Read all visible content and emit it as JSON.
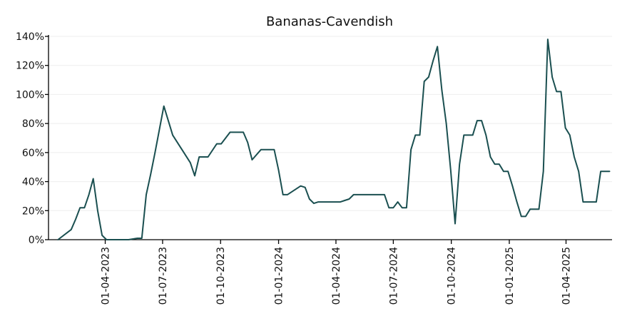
{
  "chart_data": {
    "type": "line",
    "title": "Bananas-Cavendish",
    "xlabel": "",
    "ylabel": "",
    "ylim": [
      0,
      140
    ],
    "yticks": [
      0,
      20,
      40,
      60,
      80,
      100,
      120,
      140
    ],
    "ytick_labels": [
      "0%",
      "20%",
      "40%",
      "60%",
      "80%",
      "100%",
      "120%",
      "140%"
    ],
    "xlim": [
      "2023-01-01",
      "2025-06-13"
    ],
    "xticks": [
      "2023-04-01",
      "2023-07-01",
      "2023-10-01",
      "2024-01-01",
      "2024-04-01",
      "2024-07-01",
      "2024-10-01",
      "2025-01-01",
      "2025-04-01"
    ],
    "xtick_labels": [
      "01-04-2023",
      "01-07-2023",
      "01-10-2023",
      "01-01-2024",
      "01-04-2024",
      "01-07-2024",
      "01-10-2024",
      "01-01-2025",
      "01-04-2025"
    ],
    "grid": true,
    "line_color": "#1a4f50",
    "series": [
      {
        "points": [
          [
            "2023-01-16",
            0
          ],
          [
            "2023-02-06",
            7
          ],
          [
            "2023-02-13",
            14
          ],
          [
            "2023-02-20",
            22
          ],
          [
            "2023-02-27",
            22
          ],
          [
            "2023-03-06",
            31
          ],
          [
            "2023-03-13",
            42
          ],
          [
            "2023-03-20",
            20
          ],
          [
            "2023-03-27",
            3
          ],
          [
            "2023-04-03",
            0
          ],
          [
            "2023-04-10",
            0
          ],
          [
            "2023-05-08",
            0
          ],
          [
            "2023-05-22",
            1
          ],
          [
            "2023-05-29",
            1
          ],
          [
            "2023-06-05",
            31
          ],
          [
            "2023-06-12",
            45
          ],
          [
            "2023-06-19",
            60
          ],
          [
            "2023-06-26",
            76
          ],
          [
            "2023-07-03",
            92
          ],
          [
            "2023-07-10",
            82
          ],
          [
            "2023-07-17",
            72
          ],
          [
            "2023-08-14",
            53
          ],
          [
            "2023-08-21",
            44
          ],
          [
            "2023-08-28",
            57
          ],
          [
            "2023-09-04",
            57
          ],
          [
            "2023-09-11",
            57
          ],
          [
            "2023-09-25",
            66
          ],
          [
            "2023-10-02",
            66
          ],
          [
            "2023-10-16",
            74
          ],
          [
            "2023-10-23",
            74
          ],
          [
            "2023-11-06",
            74
          ],
          [
            "2023-11-13",
            67
          ],
          [
            "2023-11-20",
            55
          ],
          [
            "2023-12-04",
            62
          ],
          [
            "2023-12-11",
            62
          ],
          [
            "2023-12-25",
            62
          ],
          [
            "2024-01-01",
            48
          ],
          [
            "2024-01-08",
            31
          ],
          [
            "2024-01-15",
            31
          ],
          [
            "2024-02-05",
            37
          ],
          [
            "2024-02-12",
            36
          ],
          [
            "2024-02-19",
            28
          ],
          [
            "2024-02-26",
            25
          ],
          [
            "2024-03-04",
            26
          ],
          [
            "2024-03-11",
            26
          ],
          [
            "2024-04-08",
            26
          ],
          [
            "2024-04-15",
            27
          ],
          [
            "2024-04-22",
            28
          ],
          [
            "2024-04-29",
            31
          ],
          [
            "2024-05-06",
            31
          ],
          [
            "2024-06-17",
            31
          ],
          [
            "2024-06-24",
            22
          ],
          [
            "2024-07-01",
            22
          ],
          [
            "2024-07-08",
            26
          ],
          [
            "2024-07-15",
            22
          ],
          [
            "2024-07-22",
            22
          ],
          [
            "2024-07-29",
            62
          ],
          [
            "2024-08-05",
            72
          ],
          [
            "2024-08-12",
            72
          ],
          [
            "2024-08-19",
            109
          ],
          [
            "2024-08-26",
            112
          ],
          [
            "2024-09-02",
            123
          ],
          [
            "2024-09-09",
            133
          ],
          [
            "2024-09-16",
            103
          ],
          [
            "2024-09-23",
            80
          ],
          [
            "2024-09-30",
            48
          ],
          [
            "2024-10-07",
            11
          ],
          [
            "2024-10-14",
            52
          ],
          [
            "2024-10-21",
            72
          ],
          [
            "2024-10-28",
            72
          ],
          [
            "2024-11-04",
            72
          ],
          [
            "2024-11-11",
            82
          ],
          [
            "2024-11-18",
            82
          ],
          [
            "2024-11-25",
            72
          ],
          [
            "2024-12-02",
            57
          ],
          [
            "2024-12-09",
            52
          ],
          [
            "2024-12-16",
            52
          ],
          [
            "2024-12-23",
            47
          ],
          [
            "2024-12-30",
            47
          ],
          [
            "2025-01-06",
            37
          ],
          [
            "2025-01-13",
            26
          ],
          [
            "2025-01-20",
            16
          ],
          [
            "2025-01-27",
            16
          ],
          [
            "2025-02-03",
            21
          ],
          [
            "2025-02-10",
            21
          ],
          [
            "2025-02-17",
            21
          ],
          [
            "2025-02-24",
            47
          ],
          [
            "2025-03-03",
            138
          ],
          [
            "2025-03-10",
            112
          ],
          [
            "2025-03-17",
            102
          ],
          [
            "2025-03-24",
            102
          ],
          [
            "2025-03-31",
            77
          ],
          [
            "2025-04-07",
            72
          ],
          [
            "2025-04-14",
            57
          ],
          [
            "2025-04-21",
            47
          ],
          [
            "2025-04-28",
            26
          ],
          [
            "2025-05-05",
            26
          ],
          [
            "2025-05-19",
            26
          ],
          [
            "2025-05-26",
            47
          ],
          [
            "2025-06-09",
            47
          ]
        ]
      }
    ]
  }
}
